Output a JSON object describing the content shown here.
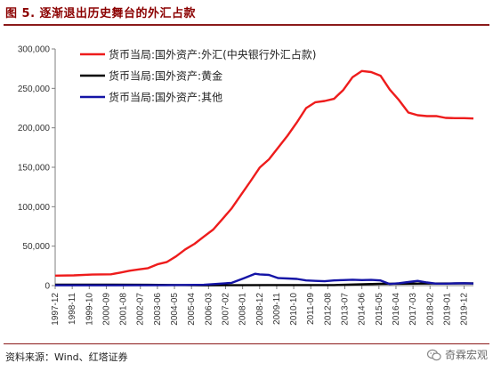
{
  "title": "图 5. 逐渐退出历史舞台的外汇占款",
  "source": "资料来源：Wind、红塔证券",
  "watermark": "奇霖宏观",
  "colors": {
    "forex": "#ee1c1c",
    "gold": "#000000",
    "other": "#1414a6",
    "title": "#8b0000"
  },
  "chart_data": {
    "type": "line",
    "title": "",
    "xlabel": "",
    "ylabel": "",
    "ylim": [
      0,
      300000
    ],
    "yticks": [
      0,
      50000,
      100000,
      150000,
      200000,
      250000,
      300000
    ],
    "ytick_labels": [
      "0",
      "50,000",
      "100,000",
      "150,000",
      "200,000",
      "250,000",
      "300,000"
    ],
    "xticks": [
      "1997-12",
      "1998-11",
      "1999-10",
      "2000-09",
      "2001-08",
      "2002-07",
      "2003-06",
      "2004-05",
      "2005-04",
      "2006-03",
      "2007-02",
      "2008-01",
      "2008-12",
      "2009-11",
      "2010-10",
      "2011-09",
      "2012-08",
      "2013-07",
      "2014-06",
      "2015-05",
      "2016-04",
      "2017-03",
      "2018-02",
      "2019-01",
      "2019-12"
    ],
    "x_range": [
      "1997-12",
      "2020-06"
    ],
    "legend_position": "top-left",
    "grid": false,
    "series": [
      {
        "name": "货币当局:国外资产:外汇(中央银行外汇占款)",
        "color": "#ee1c1c",
        "points": [
          [
            "1997-12",
            12600
          ],
          [
            "1998-12",
            13000
          ],
          [
            "1999-12",
            14000
          ],
          [
            "2000-12",
            14300
          ],
          [
            "2001-06",
            16500
          ],
          [
            "2001-12",
            18800
          ],
          [
            "2002-06",
            20500
          ],
          [
            "2002-12",
            22100
          ],
          [
            "2003-06",
            27000
          ],
          [
            "2003-12",
            29800
          ],
          [
            "2004-06",
            37000
          ],
          [
            "2004-12",
            45900
          ],
          [
            "2005-06",
            53000
          ],
          [
            "2005-12",
            62100
          ],
          [
            "2006-06",
            71000
          ],
          [
            "2006-12",
            84400
          ],
          [
            "2007-06",
            98000
          ],
          [
            "2007-12",
            115200
          ],
          [
            "2008-06",
            132000
          ],
          [
            "2008-12",
            149600
          ],
          [
            "2009-06",
            160000
          ],
          [
            "2009-12",
            175200
          ],
          [
            "2010-06",
            190000
          ],
          [
            "2010-12",
            206800
          ],
          [
            "2011-06",
            225000
          ],
          [
            "2011-12",
            232400
          ],
          [
            "2012-06",
            234000
          ],
          [
            "2012-12",
            236700
          ],
          [
            "2013-06",
            248000
          ],
          [
            "2013-12",
            264300
          ],
          [
            "2014-06",
            272000
          ],
          [
            "2014-12",
            270700
          ],
          [
            "2015-06",
            266000
          ],
          [
            "2015-12",
            248500
          ],
          [
            "2016-06",
            235000
          ],
          [
            "2016-12",
            219400
          ],
          [
            "2017-06",
            216000
          ],
          [
            "2017-12",
            214800
          ],
          [
            "2018-06",
            215000
          ],
          [
            "2018-12",
            212600
          ],
          [
            "2019-06",
            212200
          ],
          [
            "2019-12",
            212300
          ],
          [
            "2020-06",
            211800
          ]
        ]
      },
      {
        "name": "货币当局:国外资产:黄金",
        "color": "#000000",
        "points": [
          [
            "1997-12",
            1200
          ],
          [
            "2000-12",
            1200
          ],
          [
            "2002-12",
            1000
          ],
          [
            "2005-12",
            340
          ],
          [
            "2009-06",
            670
          ],
          [
            "2012-12",
            670
          ],
          [
            "2015-06",
            2300
          ],
          [
            "2017-12",
            2540
          ],
          [
            "2019-12",
            2860
          ],
          [
            "2020-06",
            2860
          ]
        ]
      },
      {
        "name": "货币当局:国外资产:其他",
        "color": "#1414a6",
        "points": [
          [
            "1997-12",
            300
          ],
          [
            "2003-12",
            500
          ],
          [
            "2005-12",
            1000
          ],
          [
            "2007-06",
            3500
          ],
          [
            "2008-02",
            9500
          ],
          [
            "2008-09",
            15000
          ],
          [
            "2008-12",
            14200
          ],
          [
            "2009-06",
            13500
          ],
          [
            "2009-12",
            9500
          ],
          [
            "2010-06",
            9000
          ],
          [
            "2010-12",
            8500
          ],
          [
            "2011-06",
            6500
          ],
          [
            "2011-12",
            6000
          ],
          [
            "2012-06",
            5500
          ],
          [
            "2012-12",
            6500
          ],
          [
            "2013-06",
            7000
          ],
          [
            "2013-12",
            7500
          ],
          [
            "2014-06",
            7000
          ],
          [
            "2014-12",
            7200
          ],
          [
            "2015-06",
            6500
          ],
          [
            "2015-12",
            2000
          ],
          [
            "2016-06",
            3000
          ],
          [
            "2016-12",
            4500
          ],
          [
            "2017-06",
            6000
          ],
          [
            "2017-12",
            4000
          ],
          [
            "2018-06",
            2500
          ],
          [
            "2018-12",
            2500
          ],
          [
            "2019-06",
            2800
          ],
          [
            "2019-12",
            3000
          ],
          [
            "2020-06",
            2600
          ]
        ]
      }
    ]
  }
}
